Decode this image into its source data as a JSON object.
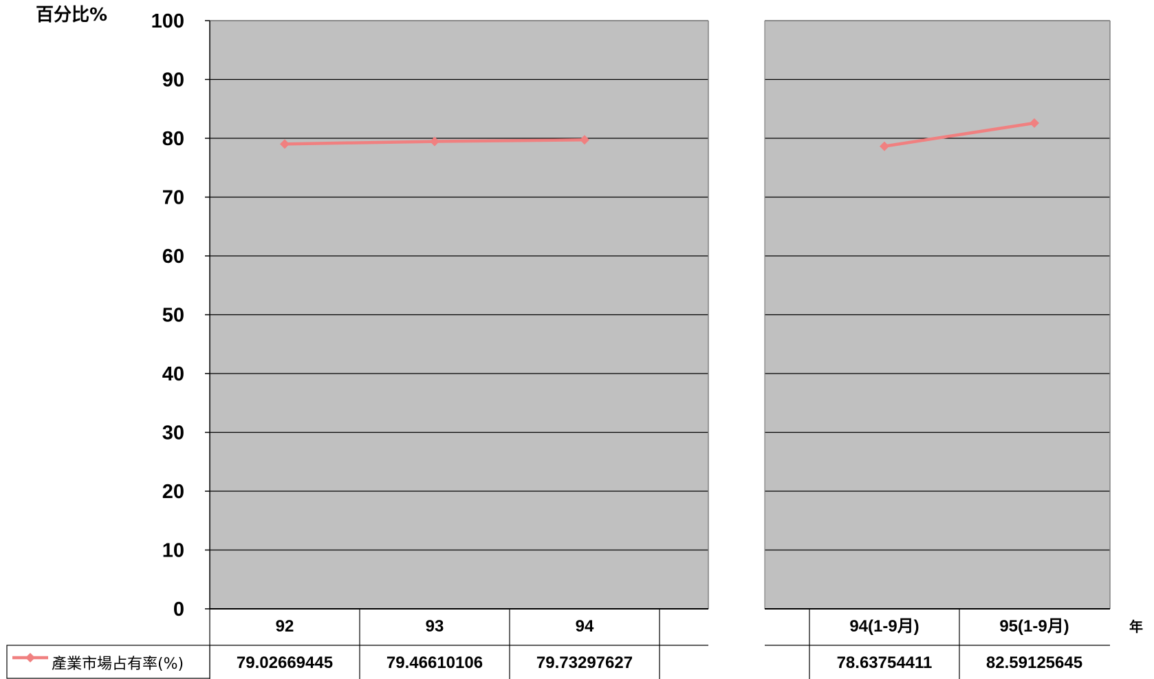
{
  "chart_data": {
    "type": "line",
    "ylabel": "百分比%",
    "xlabel": "年",
    "ylim": [
      0,
      100
    ],
    "yticks": [
      0,
      10,
      20,
      30,
      40,
      50,
      60,
      70,
      80,
      90,
      100
    ],
    "grid": true,
    "series_color": "#f08080",
    "plot_background": "#c0c0c0",
    "panels": [
      {
        "categories": [
          "92",
          "93",
          "94",
          ""
        ],
        "series": [
          {
            "name": "產業市場占有率(%)",
            "values": [
              79.02669445,
              79.46610106,
              79.73297627,
              null
            ]
          }
        ],
        "table_values": [
          "79.02669445",
          "79.46610106",
          "79.73297627",
          ""
        ]
      },
      {
        "categories": [
          "",
          "94(1-9月)",
          "95(1-9月)"
        ],
        "series": [
          {
            "name": "產業市場占有率(%)",
            "values": [
              null,
              78.63754411,
              82.59125645
            ]
          }
        ],
        "table_values": [
          "",
          "78.63754411",
          "82.59125645"
        ]
      }
    ]
  }
}
